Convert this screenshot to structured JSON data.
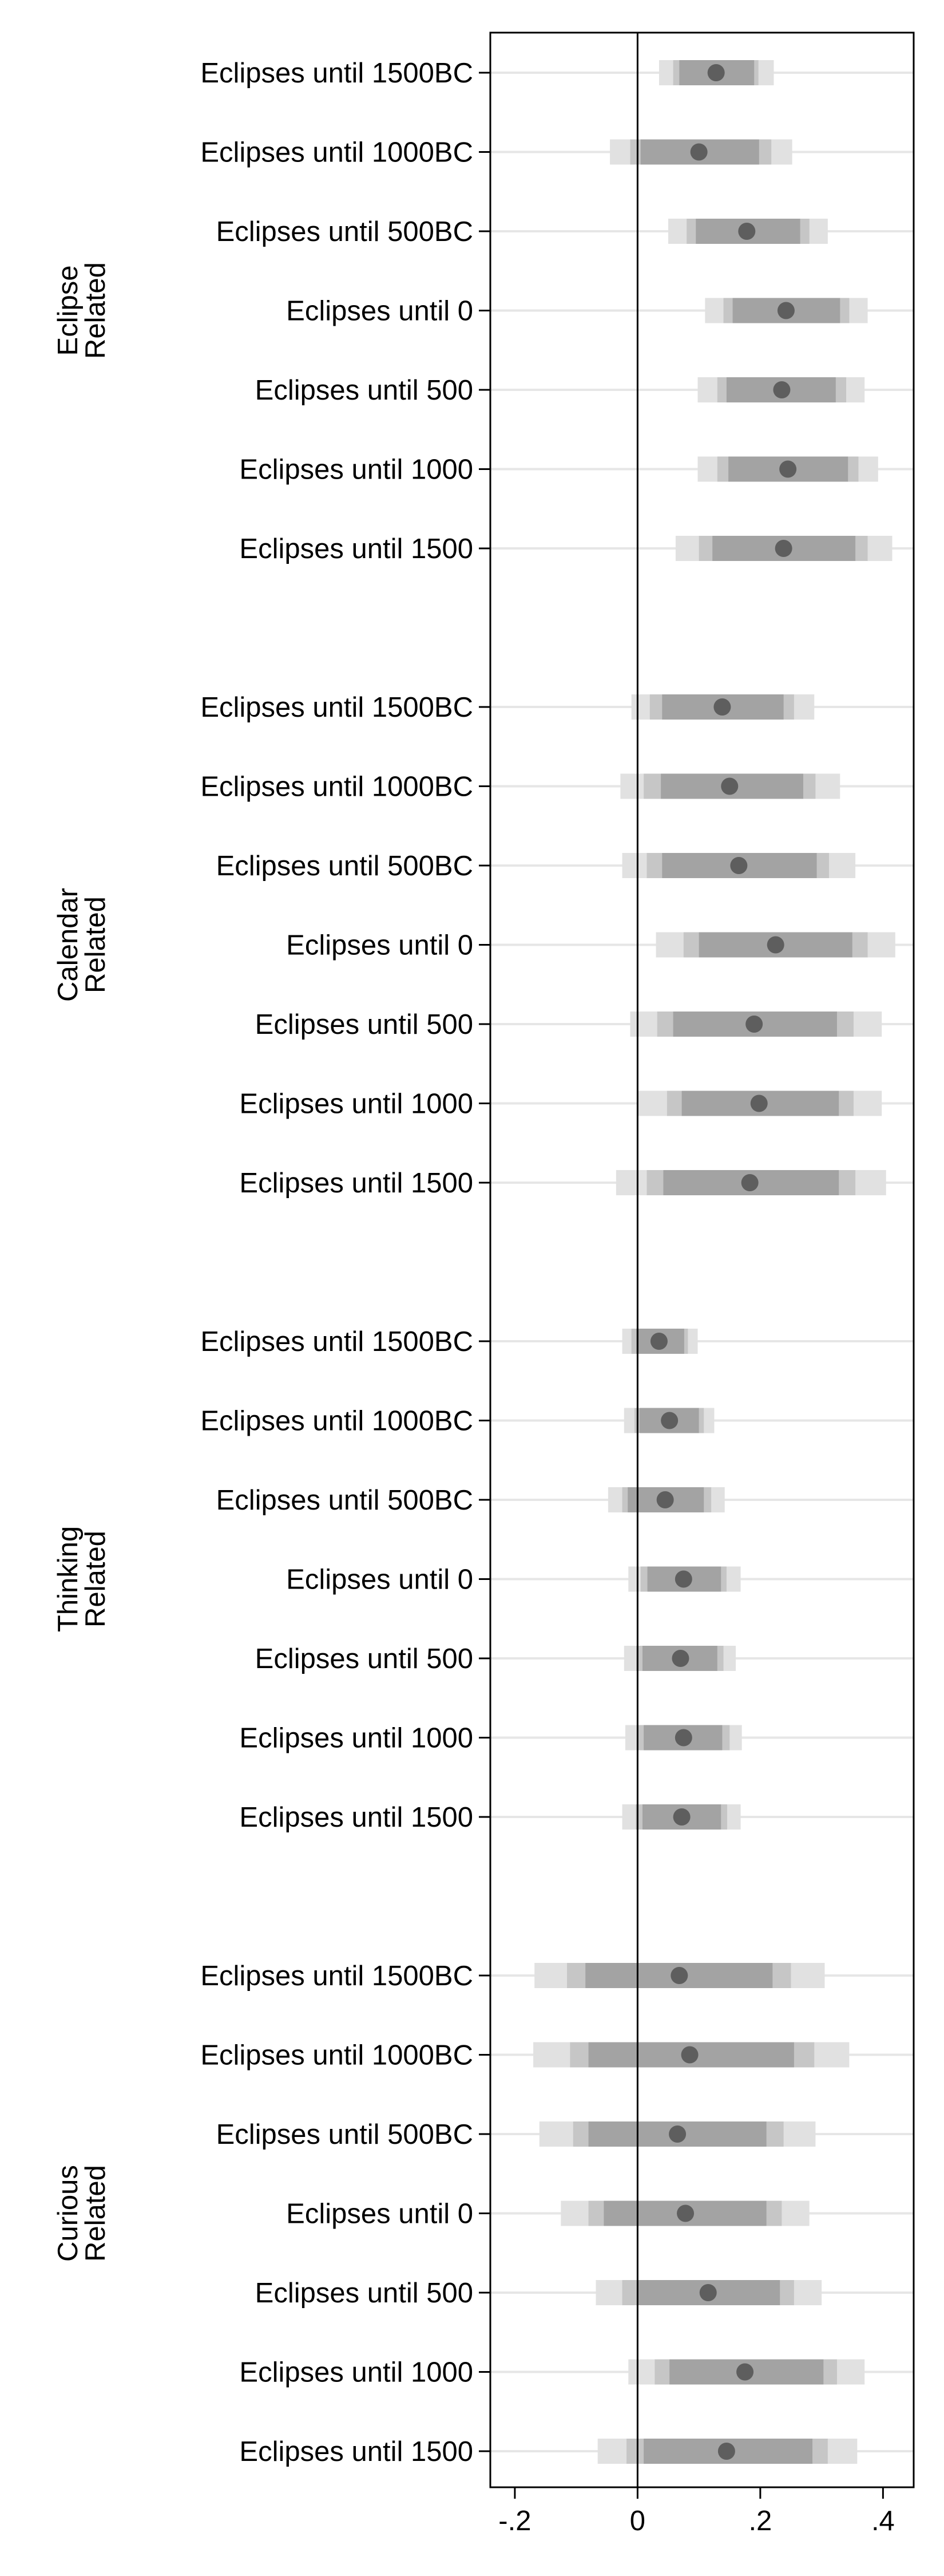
{
  "chart_data": {
    "type": "coefficient-plot",
    "xlim": [
      -0.24,
      0.45
    ],
    "xticks": [
      -0.2,
      0,
      0.2,
      0.4
    ],
    "xtick_labels": [
      "-.2",
      "0",
      ".2",
      ".4"
    ],
    "reference_line_x": 0,
    "colors": {
      "ci_outer": "#e1e1e1",
      "ci_middle": "#c6c6c6",
      "ci_inner": "#a3a3a3",
      "point": "#5e5e5e",
      "row_line": "#e6e6e6",
      "axis": "#000000"
    },
    "groups": [
      {
        "label": [
          "Eclipse",
          "Related"
        ],
        "rows": [
          {
            "label": "Eclipses until 1500BC",
            "estimate": 0.128,
            "ci99": [
              0.035,
              0.222
            ],
            "ci95": [
              0.058,
              0.197
            ],
            "ci90": [
              0.068,
              0.19
            ]
          },
          {
            "label": "Eclipses until 1000BC",
            "estimate": 0.1,
            "ci99": [
              -0.045,
              0.252
            ],
            "ci95": [
              -0.012,
              0.218
            ],
            "ci90": [
              0.005,
              0.198
            ]
          },
          {
            "label": "Eclipses until 500BC",
            "estimate": 0.178,
            "ci99": [
              0.05,
              0.31
            ],
            "ci95": [
              0.08,
              0.28
            ],
            "ci90": [
              0.095,
              0.265
            ]
          },
          {
            "label": "Eclipses until 0",
            "estimate": 0.242,
            "ci99": [
              0.11,
              0.375
            ],
            "ci95": [
              0.14,
              0.345
            ],
            "ci90": [
              0.155,
              0.33
            ]
          },
          {
            "label": "Eclipses until 500",
            "estimate": 0.235,
            "ci99": [
              0.098,
              0.37
            ],
            "ci95": [
              0.13,
              0.34
            ],
            "ci90": [
              0.145,
              0.323
            ]
          },
          {
            "label": "Eclipses until 1000",
            "estimate": 0.245,
            "ci99": [
              0.098,
              0.392
            ],
            "ci95": [
              0.13,
              0.36
            ],
            "ci90": [
              0.148,
              0.343
            ]
          },
          {
            "label": "Eclipses until 1500",
            "estimate": 0.238,
            "ci99": [
              0.062,
              0.415
            ],
            "ci95": [
              0.1,
              0.375
            ],
            "ci90": [
              0.122,
              0.355
            ]
          }
        ]
      },
      {
        "label": [
          "Calendar",
          "Related"
        ],
        "rows": [
          {
            "label": "Eclipses until 1500BC",
            "estimate": 0.138,
            "ci99": [
              -0.01,
              0.288
            ],
            "ci95": [
              0.02,
              0.255
            ],
            "ci90": [
              0.04,
              0.238
            ]
          },
          {
            "label": "Eclipses until 1000BC",
            "estimate": 0.15,
            "ci99": [
              -0.028,
              0.33
            ],
            "ci95": [
              0.01,
              0.29
            ],
            "ci90": [
              0.038,
              0.27
            ]
          },
          {
            "label": "Eclipses until 500BC",
            "estimate": 0.165,
            "ci99": [
              -0.025,
              0.355
            ],
            "ci95": [
              0.015,
              0.312
            ],
            "ci90": [
              0.04,
              0.292
            ]
          },
          {
            "label": "Eclipses until 0",
            "estimate": 0.225,
            "ci99": [
              0.03,
              0.42
            ],
            "ci95": [
              0.075,
              0.375
            ],
            "ci90": [
              0.1,
              0.35
            ]
          },
          {
            "label": "Eclipses until 500",
            "estimate": 0.19,
            "ci99": [
              -0.012,
              0.398
            ],
            "ci95": [
              0.032,
              0.352
            ],
            "ci90": [
              0.058,
              0.325
            ]
          },
          {
            "label": "Eclipses until 1000",
            "estimate": 0.198,
            "ci99": [
              0.0,
              0.398
            ],
            "ci95": [
              0.048,
              0.352
            ],
            "ci90": [
              0.072,
              0.328
            ]
          },
          {
            "label": "Eclipses until 1500",
            "estimate": 0.183,
            "ci99": [
              -0.035,
              0.405
            ],
            "ci95": [
              0.015,
              0.355
            ],
            "ci90": [
              0.042,
              0.328
            ]
          }
        ]
      },
      {
        "label": [
          "Thinking",
          "Related"
        ],
        "rows": [
          {
            "label": "Eclipses until 1500BC",
            "estimate": 0.035,
            "ci99": [
              -0.025,
              0.098
            ],
            "ci95": [
              -0.01,
              0.082
            ],
            "ci90": [
              -0.002,
              0.076
            ]
          },
          {
            "label": "Eclipses until 1000BC",
            "estimate": 0.052,
            "ci99": [
              -0.022,
              0.125
            ],
            "ci95": [
              -0.005,
              0.108
            ],
            "ci90": [
              0.003,
              0.1
            ]
          },
          {
            "label": "Eclipses until 500BC",
            "estimate": 0.045,
            "ci99": [
              -0.048,
              0.142
            ],
            "ci95": [
              -0.025,
              0.12
            ],
            "ci90": [
              -0.016,
              0.108
            ]
          },
          {
            "label": "Eclipses until 0",
            "estimate": 0.075,
            "ci99": [
              -0.015,
              0.168
            ],
            "ci95": [
              0.005,
              0.145
            ],
            "ci90": [
              0.016,
              0.136
            ]
          },
          {
            "label": "Eclipses until 500",
            "estimate": 0.07,
            "ci99": [
              -0.022,
              0.16
            ],
            "ci95": [
              -0.002,
              0.14
            ],
            "ci90": [
              0.008,
              0.13
            ]
          },
          {
            "label": "Eclipses until 1000",
            "estimate": 0.075,
            "ci99": [
              -0.02,
              0.17
            ],
            "ci95": [
              0.0,
              0.15
            ],
            "ci90": [
              0.01,
              0.138
            ]
          },
          {
            "label": "Eclipses until 1500",
            "estimate": 0.072,
            "ci99": [
              -0.025,
              0.168
            ],
            "ci95": [
              -0.003,
              0.146
            ],
            "ci90": [
              0.008,
              0.136
            ]
          }
        ]
      },
      {
        "label": [
          "Curious",
          "Related"
        ],
        "rows": [
          {
            "label": "Eclipses until 1500BC",
            "estimate": 0.068,
            "ci99": [
              -0.168,
              0.305
            ],
            "ci95": [
              -0.115,
              0.25
            ],
            "ci90": [
              -0.085,
              0.22
            ]
          },
          {
            "label": "Eclipses until 1000BC",
            "estimate": 0.085,
            "ci99": [
              -0.17,
              0.345
            ],
            "ci95": [
              -0.11,
              0.288
            ],
            "ci90": [
              -0.08,
              0.255
            ]
          },
          {
            "label": "Eclipses until 500BC",
            "estimate": 0.065,
            "ci99": [
              -0.16,
              0.29
            ],
            "ci95": [
              -0.105,
              0.238
            ],
            "ci90": [
              -0.08,
              0.21
            ]
          },
          {
            "label": "Eclipses until 0",
            "estimate": 0.078,
            "ci99": [
              -0.125,
              0.28
            ],
            "ci95": [
              -0.08,
              0.235
            ],
            "ci90": [
              -0.055,
              0.21
            ]
          },
          {
            "label": "Eclipses until 500",
            "estimate": 0.115,
            "ci99": [
              -0.068,
              0.3
            ],
            "ci95": [
              -0.025,
              0.255
            ],
            "ci90": [
              0.0,
              0.232
            ]
          },
          {
            "label": "Eclipses until 1000",
            "estimate": 0.175,
            "ci99": [
              -0.015,
              0.37
            ],
            "ci95": [
              0.028,
              0.325
            ],
            "ci90": [
              0.052,
              0.303
            ]
          },
          {
            "label": "Eclipses until 1500",
            "estimate": 0.145,
            "ci99": [
              -0.065,
              0.358
            ],
            "ci95": [
              -0.018,
              0.31
            ],
            "ci90": [
              0.01,
              0.285
            ]
          }
        ]
      }
    ]
  }
}
